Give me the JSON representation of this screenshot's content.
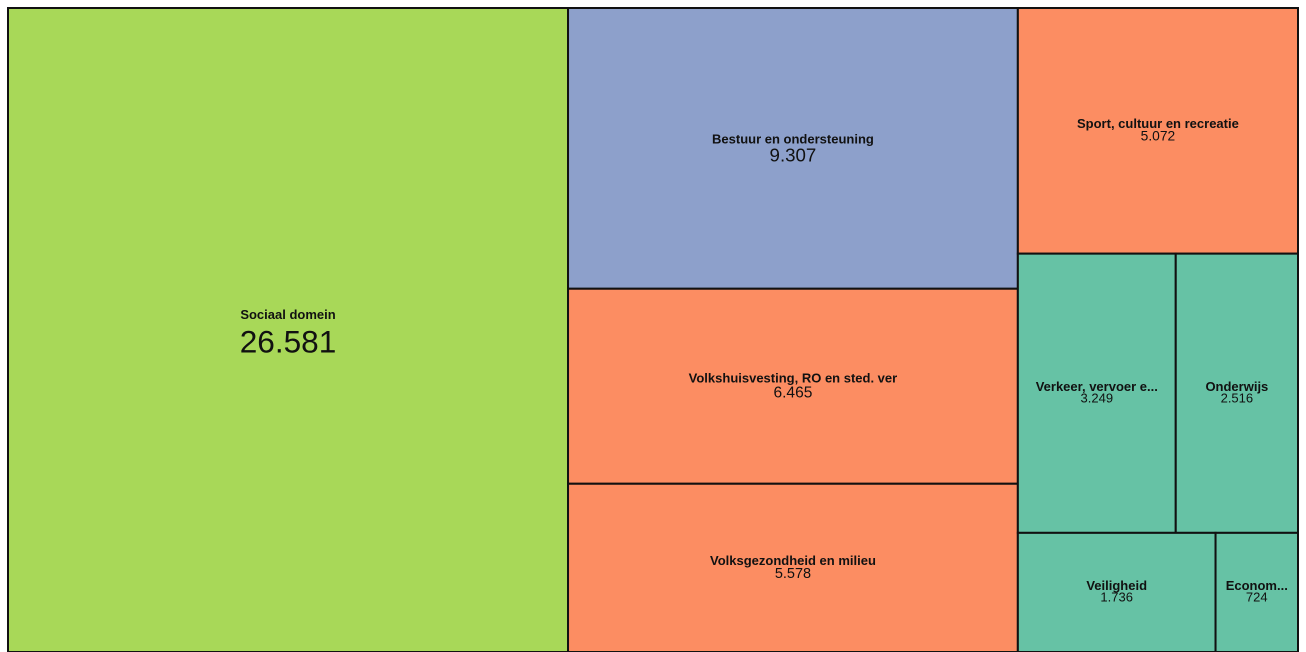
{
  "chart_data": {
    "type": "treemap",
    "categories": [
      "Sociaal domein",
      "Bestuur en ondersteuning",
      "Volkshuisvesting, RO en sted. ver",
      "Volksgezondheid en milieu",
      "Sport, cultuur en recreatie",
      "Verkeer, vervoer e...",
      "Onderwijs",
      "Veiligheid",
      "Econom..."
    ],
    "values": [
      26581,
      9307,
      6465,
      5578,
      5072,
      3249,
      2516,
      1736,
      724
    ],
    "value_labels": [
      "26.581",
      "9.307",
      "6.465",
      "5.578",
      "5.072",
      "3.249",
      "2.516",
      "1.736",
      "724"
    ],
    "colors": [
      "#a8d858",
      "#8da0cb",
      "#fc8d62",
      "#fc8d62",
      "#fc8d62",
      "#66c2a5",
      "#66c2a5",
      "#66c2a5",
      "#66c2a5"
    ]
  }
}
